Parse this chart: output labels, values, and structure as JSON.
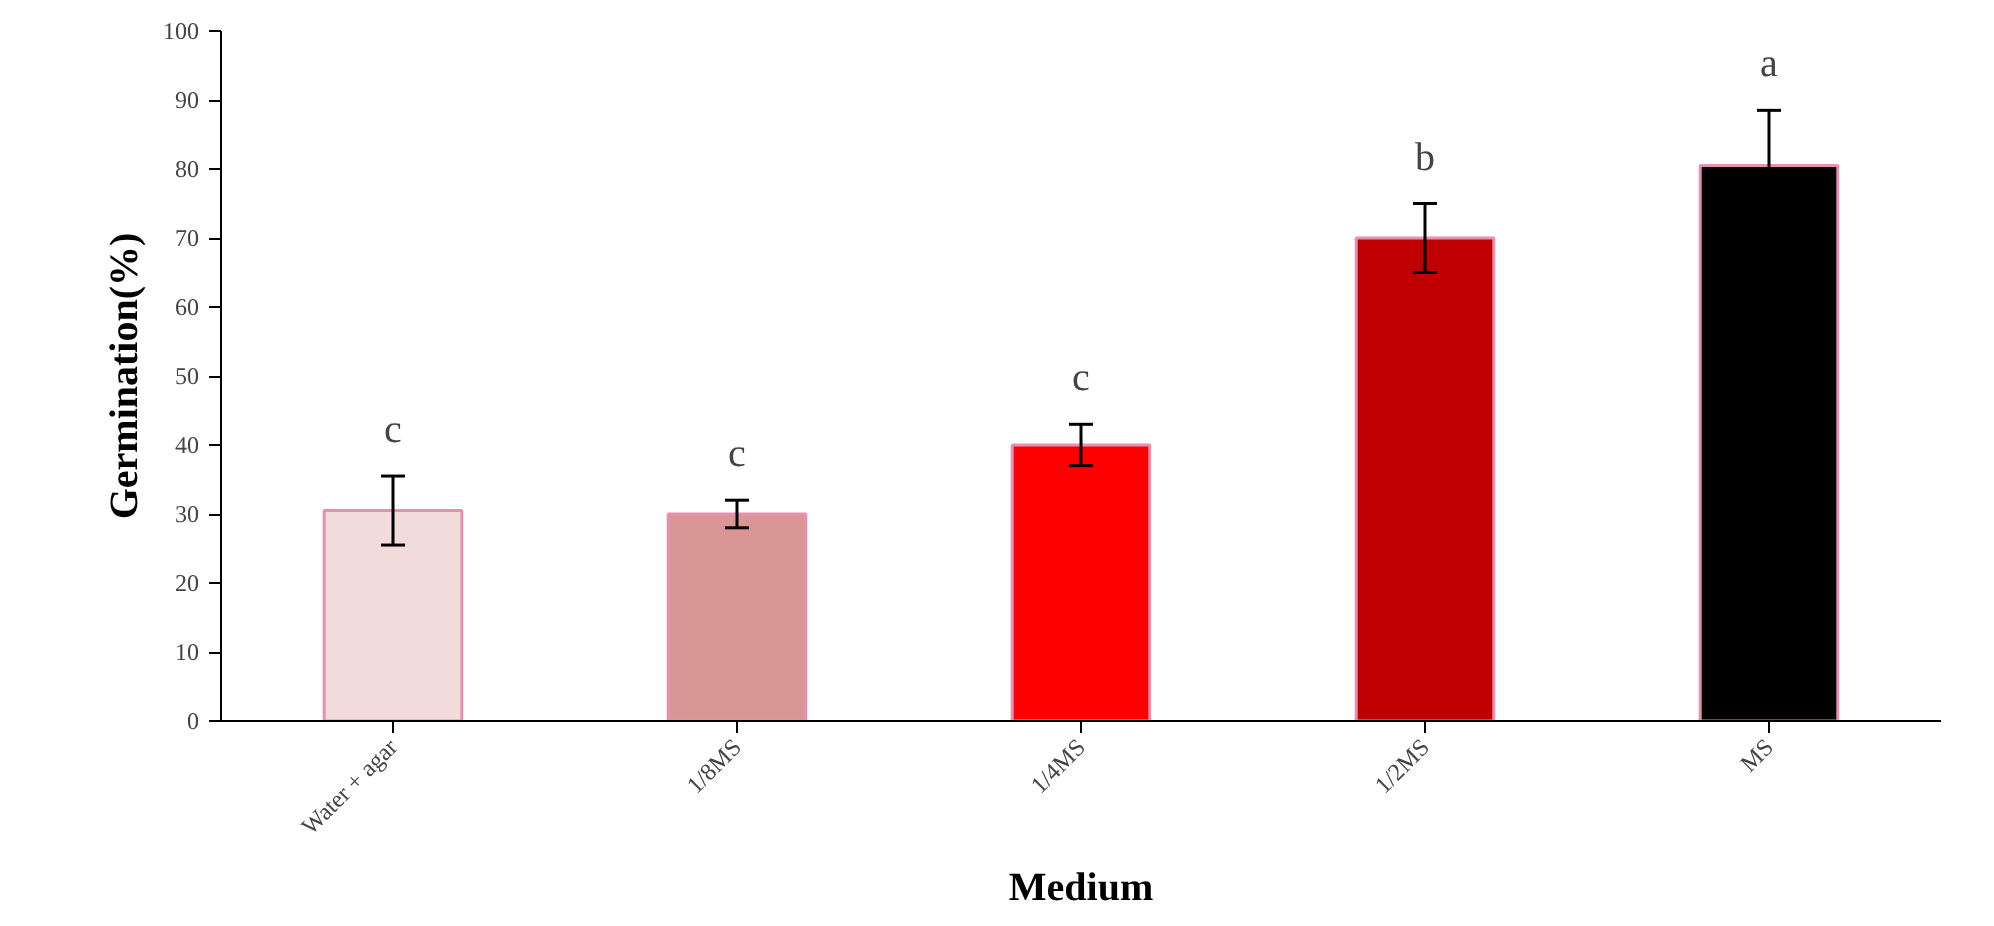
{
  "chart_data": {
    "type": "bar",
    "xlabel": "Medium",
    "ylabel": "Germination(%)",
    "categories": [
      "Water + agar",
      "1/8MS",
      "1/4MS",
      "1/2MS",
      "MS"
    ],
    "values": [
      30.5,
      30,
      40,
      70,
      80.5
    ],
    "errors": [
      5,
      2,
      3,
      5,
      8
    ],
    "colors": [
      "#f2dcdb",
      "#d99694",
      "#ff0000",
      "#c00000",
      "#000000"
    ],
    "ylim": [
      0,
      100
    ],
    "yticks": [
      0,
      10,
      20,
      30,
      40,
      50,
      60,
      70,
      80,
      90,
      100
    ],
    "grid": false,
    "annotations": [
      "c",
      "c",
      "c",
      "b",
      "a"
    ]
  }
}
